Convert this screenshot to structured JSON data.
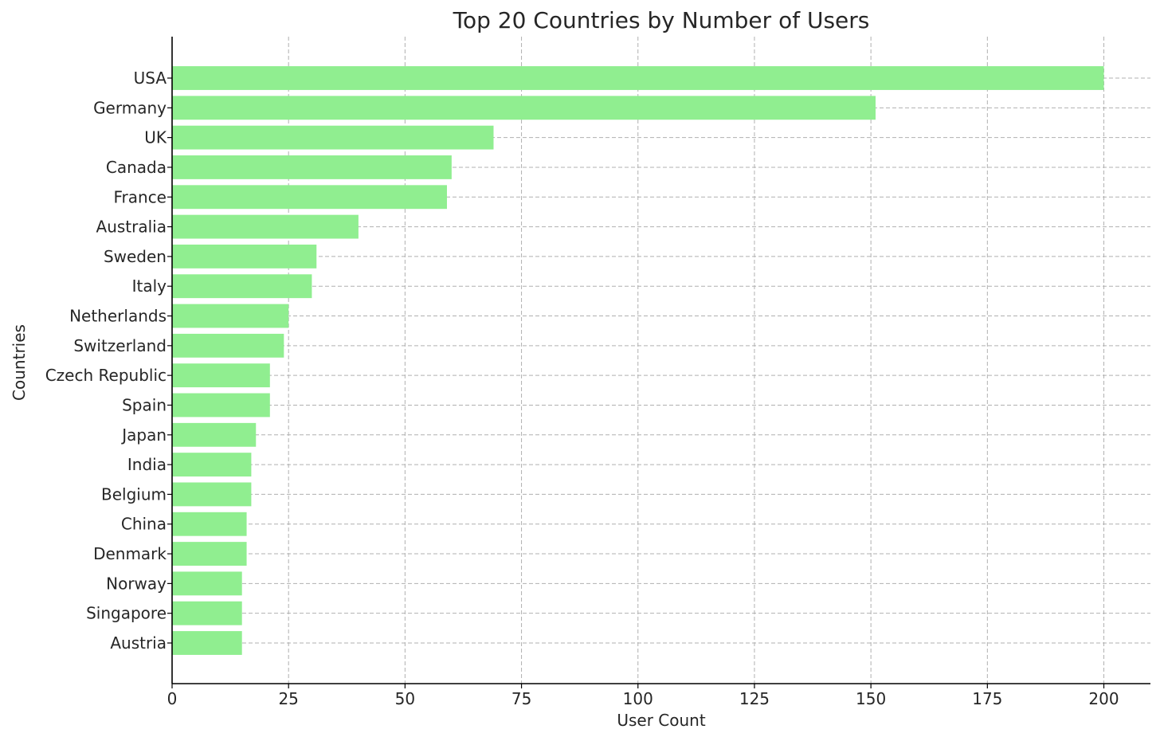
{
  "chart_data": {
    "type": "bar",
    "orientation": "horizontal",
    "title": "Top 20 Countries by Number of Users",
    "xlabel": "User Count",
    "ylabel": "Countries",
    "categories": [
      "USA",
      "Germany",
      "UK",
      "Canada",
      "France",
      "Australia",
      "Sweden",
      "Italy",
      "Netherlands",
      "Switzerland",
      "Czech Republic",
      "Spain",
      "Japan",
      "India",
      "Belgium",
      "China",
      "Denmark",
      "Norway",
      "Singapore",
      "Austria"
    ],
    "values": [
      200,
      151,
      69,
      60,
      59,
      40,
      31,
      30,
      25,
      24,
      21,
      21,
      18,
      17,
      17,
      16,
      16,
      15,
      15,
      15
    ],
    "xlim": [
      0,
      210
    ],
    "xticks": [
      0,
      25,
      50,
      75,
      100,
      125,
      150,
      175,
      200
    ],
    "grid": true,
    "bar_color": "#90ee90"
  }
}
